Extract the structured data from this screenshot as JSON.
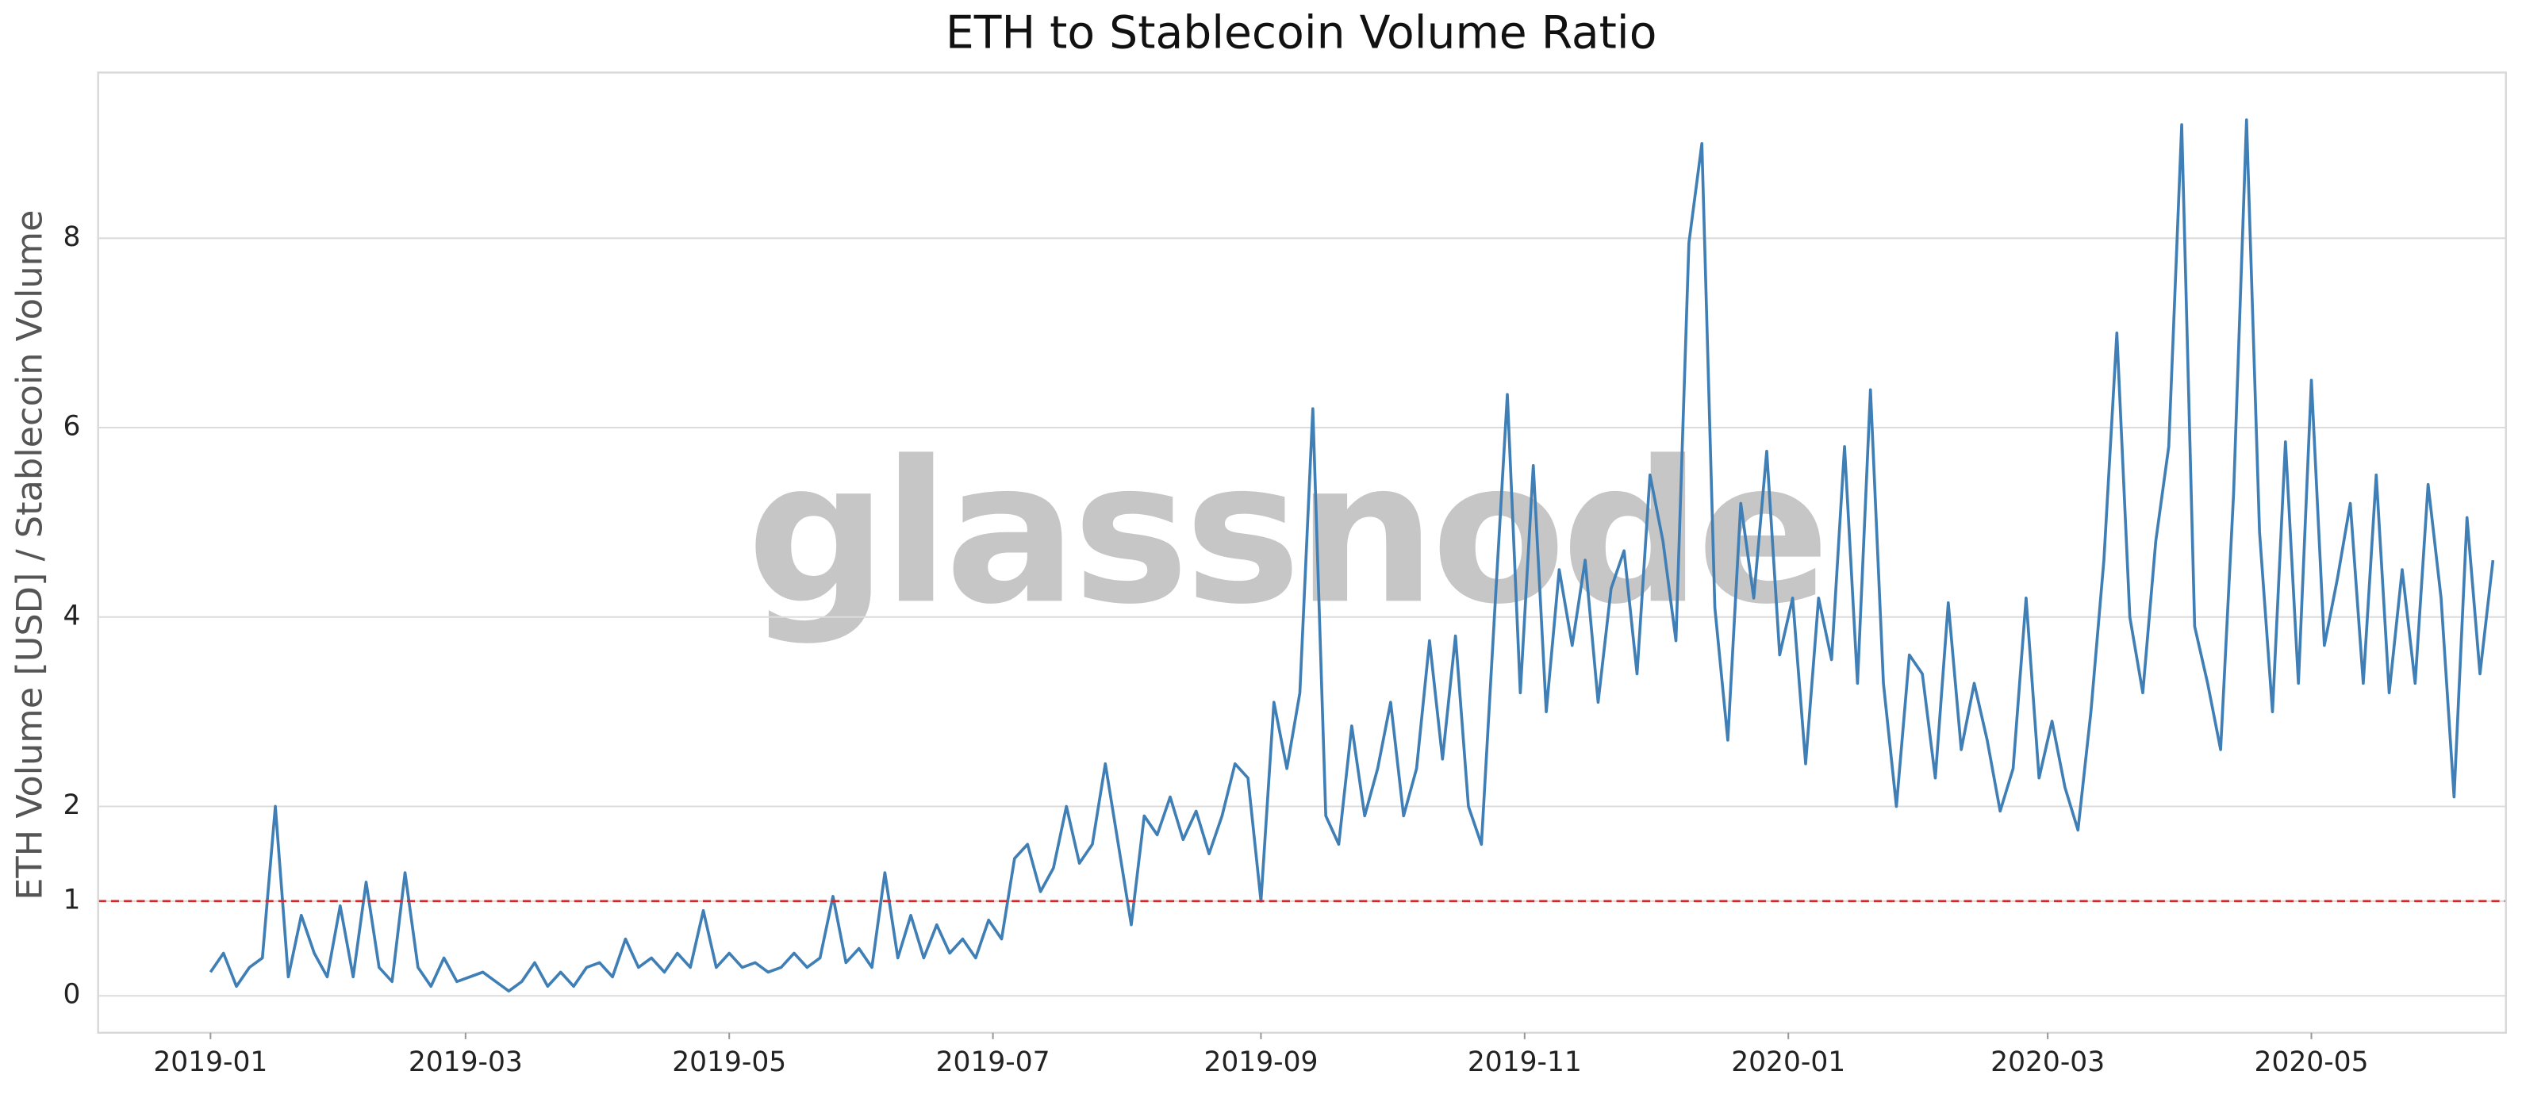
{
  "chart_data": {
    "type": "line",
    "title": "ETH to Stablecoin Volume Ratio",
    "ylabel": "ETH Volume [USD] / Stablecoin Volume",
    "watermark": "glassnode",
    "x": [
      "2019-01-01",
      "2019-01-04",
      "2019-01-07",
      "2019-01-10",
      "2019-01-13",
      "2019-01-16",
      "2019-01-19",
      "2019-01-22",
      "2019-01-25",
      "2019-01-28",
      "2019-01-31",
      "2019-02-03",
      "2019-02-06",
      "2019-02-09",
      "2019-02-12",
      "2019-02-15",
      "2019-02-18",
      "2019-02-21",
      "2019-02-24",
      "2019-02-27",
      "2019-03-02",
      "2019-03-05",
      "2019-03-08",
      "2019-03-11",
      "2019-03-14",
      "2019-03-17",
      "2019-03-20",
      "2019-03-23",
      "2019-03-26",
      "2019-03-29",
      "2019-04-01",
      "2019-04-04",
      "2019-04-07",
      "2019-04-10",
      "2019-04-13",
      "2019-04-16",
      "2019-04-19",
      "2019-04-22",
      "2019-04-25",
      "2019-04-28",
      "2019-05-01",
      "2019-05-04",
      "2019-05-07",
      "2019-05-10",
      "2019-05-13",
      "2019-05-16",
      "2019-05-19",
      "2019-05-22",
      "2019-05-25",
      "2019-05-28",
      "2019-05-31",
      "2019-06-03",
      "2019-06-06",
      "2019-06-09",
      "2019-06-12",
      "2019-06-15",
      "2019-06-18",
      "2019-06-21",
      "2019-06-24",
      "2019-06-27",
      "2019-06-30",
      "2019-07-03",
      "2019-07-06",
      "2019-07-09",
      "2019-07-12",
      "2019-07-15",
      "2019-07-18",
      "2019-07-21",
      "2019-07-24",
      "2019-07-27",
      "2019-07-30",
      "2019-08-02",
      "2019-08-05",
      "2019-08-08",
      "2019-08-11",
      "2019-08-14",
      "2019-08-17",
      "2019-08-20",
      "2019-08-23",
      "2019-08-26",
      "2019-08-29",
      "2019-09-01",
      "2019-09-04",
      "2019-09-07",
      "2019-09-10",
      "2019-09-13",
      "2019-09-16",
      "2019-09-19",
      "2019-09-22",
      "2019-09-25",
      "2019-09-28",
      "2019-10-01",
      "2019-10-04",
      "2019-10-07",
      "2019-10-10",
      "2019-10-13",
      "2019-10-16",
      "2019-10-19",
      "2019-10-22",
      "2019-10-25",
      "2019-10-28",
      "2019-10-31",
      "2019-11-03",
      "2019-11-06",
      "2019-11-09",
      "2019-11-12",
      "2019-11-15",
      "2019-11-18",
      "2019-11-21",
      "2019-11-24",
      "2019-11-27",
      "2019-11-30",
      "2019-12-03",
      "2019-12-06",
      "2019-12-09",
      "2019-12-12",
      "2019-12-15",
      "2019-12-18",
      "2019-12-21",
      "2019-12-24",
      "2019-12-27",
      "2019-12-30",
      "2020-01-02",
      "2020-01-05",
      "2020-01-08",
      "2020-01-11",
      "2020-01-14",
      "2020-01-17",
      "2020-01-20",
      "2020-01-23",
      "2020-01-26",
      "2020-01-29",
      "2020-02-01",
      "2020-02-04",
      "2020-02-07",
      "2020-02-10",
      "2020-02-13",
      "2020-02-16",
      "2020-02-19",
      "2020-02-22",
      "2020-02-25",
      "2020-02-28",
      "2020-03-02",
      "2020-03-05",
      "2020-03-08",
      "2020-03-11",
      "2020-03-14",
      "2020-03-17",
      "2020-03-20",
      "2020-03-23",
      "2020-03-26",
      "2020-03-29",
      "2020-04-01",
      "2020-04-04",
      "2020-04-07",
      "2020-04-10",
      "2020-04-13",
      "2020-04-16",
      "2020-04-19",
      "2020-04-22",
      "2020-04-25",
      "2020-04-28",
      "2020-05-01",
      "2020-05-04",
      "2020-05-07",
      "2020-05-10",
      "2020-05-13",
      "2020-05-16",
      "2020-05-19",
      "2020-05-22",
      "2020-05-25",
      "2020-05-28",
      "2020-05-31",
      "2020-06-03",
      "2020-06-06",
      "2020-06-09",
      "2020-06-12"
    ],
    "series": [
      {
        "name": "ETH to Stablecoin Volume Ratio",
        "color": "#3f7fb5",
        "values": [
          0.25,
          0.45,
          0.1,
          0.3,
          0.4,
          2.0,
          0.2,
          0.85,
          0.45,
          0.2,
          0.95,
          0.2,
          1.2,
          0.3,
          0.15,
          1.3,
          0.3,
          0.1,
          0.4,
          0.15,
          0.2,
          0.25,
          0.15,
          0.05,
          0.15,
          0.35,
          0.1,
          0.25,
          0.1,
          0.3,
          0.35,
          0.2,
          0.6,
          0.3,
          0.4,
          0.25,
          0.45,
          0.3,
          0.9,
          0.3,
          0.45,
          0.3,
          0.35,
          0.25,
          0.3,
          0.45,
          0.3,
          0.4,
          1.05,
          0.35,
          0.5,
          0.3,
          1.3,
          0.4,
          0.85,
          0.4,
          0.75,
          0.45,
          0.6,
          0.4,
          0.8,
          0.6,
          1.45,
          1.6,
          1.1,
          1.35,
          2.0,
          1.4,
          1.6,
          2.45,
          1.6,
          0.75,
          1.9,
          1.7,
          2.1,
          1.65,
          1.95,
          1.5,
          1.9,
          2.45,
          2.3,
          1.0,
          3.1,
          2.4,
          3.2,
          6.2,
          1.9,
          1.6,
          2.85,
          1.9,
          2.4,
          3.1,
          1.9,
          2.4,
          3.75,
          2.5,
          3.8,
          2.0,
          1.6,
          4.0,
          6.35,
          3.2,
          5.6,
          3.0,
          4.5,
          3.7,
          4.6,
          3.1,
          4.3,
          4.7,
          3.4,
          5.5,
          4.8,
          3.75,
          7.95,
          9.0,
          4.1,
          2.7,
          5.2,
          4.2,
          5.75,
          3.6,
          4.2,
          2.45,
          4.2,
          3.55,
          5.8,
          3.3,
          6.4,
          3.3,
          2.0,
          3.6,
          3.4,
          2.3,
          4.15,
          2.6,
          3.3,
          2.7,
          1.95,
          2.4,
          4.2,
          2.3,
          2.9,
          2.2,
          1.75,
          3.0,
          4.6,
          7.0,
          4.0,
          3.2,
          4.8,
          5.8,
          9.2,
          3.9,
          3.3,
          2.6,
          5.3,
          9.25,
          4.9,
          3.0,
          5.85,
          3.3,
          6.5,
          3.7,
          4.4,
          5.2,
          3.3,
          5.5,
          3.2,
          4.5,
          3.3,
          5.4,
          4.2,
          2.1,
          5.05,
          3.4,
          4.6
        ]
      }
    ],
    "hline": {
      "value": 1,
      "color": "#d62728"
    },
    "xlim": [
      "2018-12-06",
      "2020-06-15"
    ],
    "xticks": [
      {
        "value": "2019-01-01",
        "label": "2019-01"
      },
      {
        "value": "2019-03-01",
        "label": "2019-03"
      },
      {
        "value": "2019-05-01",
        "label": "2019-05"
      },
      {
        "value": "2019-07-01",
        "label": "2019-07"
      },
      {
        "value": "2019-09-01",
        "label": "2019-09"
      },
      {
        "value": "2019-11-01",
        "label": "2019-11"
      },
      {
        "value": "2020-01-01",
        "label": "2020-01"
      },
      {
        "value": "2020-03-01",
        "label": "2020-03"
      },
      {
        "value": "2020-05-01",
        "label": "2020-05"
      }
    ],
    "ylim": [
      -0.39,
      9.75
    ],
    "yticks": [
      0,
      1,
      2,
      4,
      6,
      8
    ],
    "grid": true
  }
}
